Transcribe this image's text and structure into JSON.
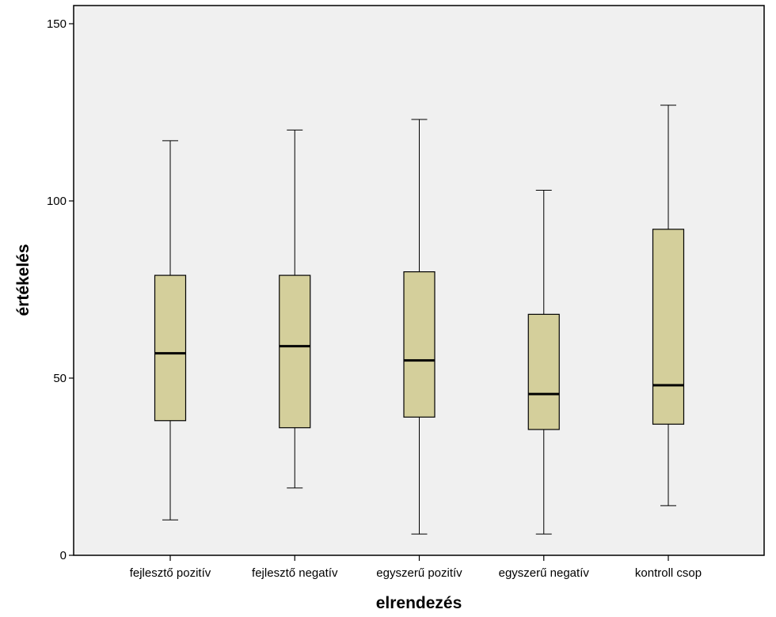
{
  "chart_data": {
    "type": "boxplot",
    "xlabel": "elrendezés",
    "ylabel": "értékelés",
    "ylim": [
      0,
      150
    ],
    "yticks": [
      0,
      50,
      100,
      150
    ],
    "grid": false,
    "categories": [
      "fejlesztő pozitív",
      "fejlesztő negatív",
      "egyszerű pozitív",
      "egyszerű negatív",
      "kontroll csop"
    ],
    "boxes": [
      {
        "min": 10,
        "q1": 38,
        "median": 57,
        "q3": 79,
        "max": 117
      },
      {
        "min": 19,
        "q1": 36,
        "median": 59,
        "q3": 79,
        "max": 120
      },
      {
        "min": 6,
        "q1": 39,
        "median": 55,
        "q3": 80,
        "max": 123
      },
      {
        "min": 6,
        "q1": 35.5,
        "median": 45.5,
        "q3": 68,
        "max": 103
      },
      {
        "min": 14,
        "q1": 37,
        "median": 48,
        "q3": 92,
        "max": 127
      }
    ],
    "colors": {
      "plot_background": "#f0f0f0",
      "box_fill": "#d4cf9b",
      "stroke": "#000000"
    }
  }
}
